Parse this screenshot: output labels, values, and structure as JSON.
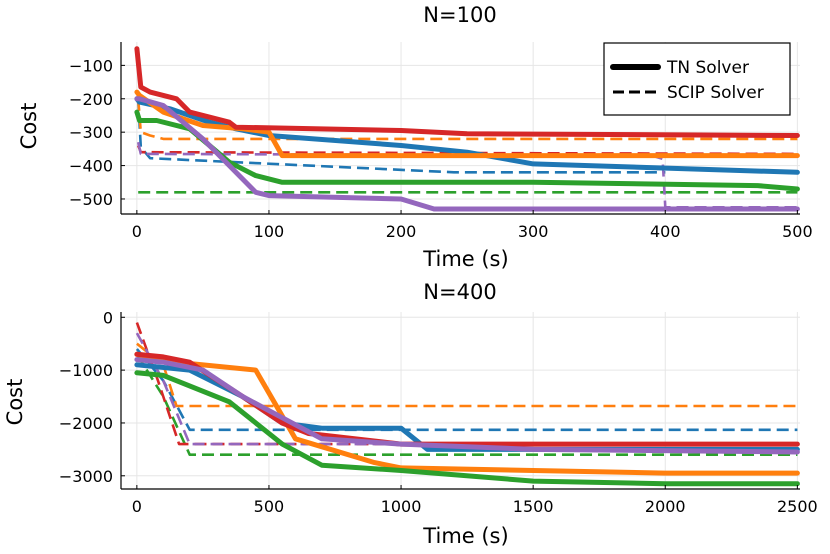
{
  "chart_data": [
    {
      "type": "line",
      "title": "N=100",
      "xlabel": "Time (s)",
      "ylabel": "Cost",
      "xlim": [
        -12,
        502
      ],
      "ylim": [
        -545,
        -30
      ],
      "xticks": [
        0,
        100,
        200,
        300,
        400,
        500
      ],
      "yticks": [
        -500,
        -400,
        -300,
        -200,
        -100
      ],
      "xtick_labels": [
        "0",
        "100",
        "200",
        "300",
        "400",
        "500"
      ],
      "ytick_labels": [
        "−500",
        "−400",
        "−300",
        "−200",
        "−100"
      ],
      "grid": true,
      "legend_position": "top-right",
      "legend": [
        {
          "label": "TN Solver",
          "style": "solid"
        },
        {
          "label": "SCIP Solver",
          "style": "dashed"
        }
      ],
      "series": [
        {
          "name": "TN blue",
          "color": "#1f77b4",
          "style": "solid",
          "x": [
            0,
            2,
            25,
            55,
            75,
            100,
            200,
            250,
            300,
            500
          ],
          "y": [
            -200,
            -210,
            -230,
            -270,
            -290,
            -310,
            -340,
            -360,
            -395,
            -420
          ]
        },
        {
          "name": "TN orange",
          "color": "#ff7f0e",
          "style": "solid",
          "x": [
            0,
            2,
            20,
            50,
            80,
            100,
            110,
            200,
            350,
            500
          ],
          "y": [
            -180,
            -190,
            -240,
            -280,
            -290,
            -300,
            -370,
            -370,
            -370,
            -370
          ]
        },
        {
          "name": "TN green",
          "color": "#2ca02c",
          "style": "solid",
          "x": [
            0,
            2,
            15,
            40,
            70,
            90,
            110,
            300,
            470,
            500
          ],
          "y": [
            -240,
            -265,
            -265,
            -290,
            -390,
            -430,
            -450,
            -450,
            -460,
            -470
          ]
        },
        {
          "name": "TN red",
          "color": "#d62728",
          "style": "solid",
          "x": [
            0,
            3,
            10,
            30,
            40,
            70,
            75,
            200,
            250,
            500
          ],
          "y": [
            -50,
            -165,
            -180,
            -200,
            -240,
            -270,
            -285,
            -295,
            -305,
            -310
          ]
        },
        {
          "name": "TN purple",
          "color": "#9467bd",
          "style": "solid",
          "x": [
            0,
            2,
            20,
            50,
            75,
            90,
            100,
            200,
            225,
            500
          ],
          "y": [
            -200,
            -200,
            -220,
            -320,
            -420,
            -480,
            -490,
            -500,
            -530,
            -530
          ]
        },
        {
          "name": "SCIP blue",
          "color": "#1f77b4",
          "style": "dashed",
          "x": [
            1,
            3,
            10,
            240,
            400
          ],
          "y": [
            -200,
            -345,
            -378,
            -420,
            -420
          ]
        },
        {
          "name": "SCIP orange",
          "color": "#ff7f0e",
          "style": "dashed",
          "x": [
            1,
            3,
            10,
            20,
            500
          ],
          "y": [
            -200,
            -300,
            -310,
            -320,
            -320
          ]
        },
        {
          "name": "SCIP green",
          "color": "#2ca02c",
          "style": "dashed",
          "x": [
            1,
            3,
            500
          ],
          "y": [
            -480,
            -480,
            -480
          ]
        },
        {
          "name": "SCIP red",
          "color": "#d62728",
          "style": "dashed",
          "x": [
            1,
            3,
            500
          ],
          "y": [
            -340,
            -360,
            -365
          ]
        },
        {
          "name": "SCIP purple",
          "color": "#9467bd",
          "style": "dashed",
          "x": [
            1,
            3,
            390,
            398,
            400,
            500
          ],
          "y": [
            -330,
            -365,
            -370,
            -380,
            -525,
            -525
          ]
        }
      ]
    },
    {
      "type": "line",
      "title": "N=400",
      "xlabel": "Time (s)",
      "ylabel": "Cost",
      "xlim": [
        -60,
        2510
      ],
      "ylim": [
        -3250,
        100
      ],
      "xticks": [
        0,
        500,
        1000,
        1500,
        2000,
        2500
      ],
      "yticks": [
        -3000,
        -2000,
        -1000,
        0
      ],
      "xtick_labels": [
        "0",
        "500",
        "1000",
        "1500",
        "2000",
        "2500"
      ],
      "ytick_labels": [
        "−3000",
        "−2000",
        "−1000",
        "0"
      ],
      "grid": true,
      "series": [
        {
          "name": "TN blue",
          "color": "#1f77b4",
          "style": "solid",
          "x": [
            0,
            200,
            400,
            550,
            700,
            1000,
            1100,
            2500
          ],
          "y": [
            -900,
            -1000,
            -1500,
            -2000,
            -2100,
            -2100,
            -2500,
            -2500
          ]
        },
        {
          "name": "TN orange",
          "color": "#ff7f0e",
          "style": "solid",
          "x": [
            0,
            150,
            450,
            600,
            900,
            1000,
            1500,
            2000,
            2500
          ],
          "y": [
            -700,
            -850,
            -1000,
            -2300,
            -2750,
            -2850,
            -2900,
            -2950,
            -2950
          ]
        },
        {
          "name": "TN green",
          "color": "#2ca02c",
          "style": "solid",
          "x": [
            0,
            100,
            350,
            550,
            700,
            1000,
            1500,
            2000,
            2500
          ],
          "y": [
            -1050,
            -1100,
            -1600,
            -2400,
            -2800,
            -2900,
            -3100,
            -3150,
            -3150
          ]
        },
        {
          "name": "TN red",
          "color": "#d62728",
          "style": "solid",
          "x": [
            0,
            100,
            200,
            400,
            550,
            650,
            1000,
            2500
          ],
          "y": [
            -700,
            -750,
            -850,
            -1500,
            -2000,
            -2200,
            -2400,
            -2400
          ]
        },
        {
          "name": "TN purple",
          "color": "#9467bd",
          "style": "solid",
          "x": [
            0,
            100,
            250,
            400,
            550,
            700,
            1000,
            1500,
            2500
          ],
          "y": [
            -800,
            -850,
            -1000,
            -1500,
            -1900,
            -2300,
            -2400,
            -2500,
            -2550
          ]
        },
        {
          "name": "SCIP blue",
          "color": "#1f77b4",
          "style": "dashed",
          "x": [
            0,
            100,
            200,
            2500
          ],
          "y": [
            -600,
            -1200,
            -2130,
            -2130
          ]
        },
        {
          "name": "SCIP orange",
          "color": "#ff7f0e",
          "style": "dashed",
          "x": [
            0,
            100,
            150,
            2500
          ],
          "y": [
            -500,
            -900,
            -1680,
            -1680
          ]
        },
        {
          "name": "SCIP green",
          "color": "#2ca02c",
          "style": "dashed",
          "x": [
            0,
            100,
            200,
            2500
          ],
          "y": [
            -700,
            -1500,
            -2600,
            -2600
          ]
        },
        {
          "name": "SCIP red",
          "color": "#d62728",
          "style": "dashed",
          "x": [
            0,
            80,
            160,
            2500
          ],
          "y": [
            -100,
            -1200,
            -2400,
            -2400
          ]
        },
        {
          "name": "SCIP purple",
          "color": "#9467bd",
          "style": "dashed",
          "x": [
            0,
            100,
            200,
            2500
          ],
          "y": [
            -300,
            -1200,
            -2400,
            -2400
          ]
        }
      ]
    }
  ]
}
